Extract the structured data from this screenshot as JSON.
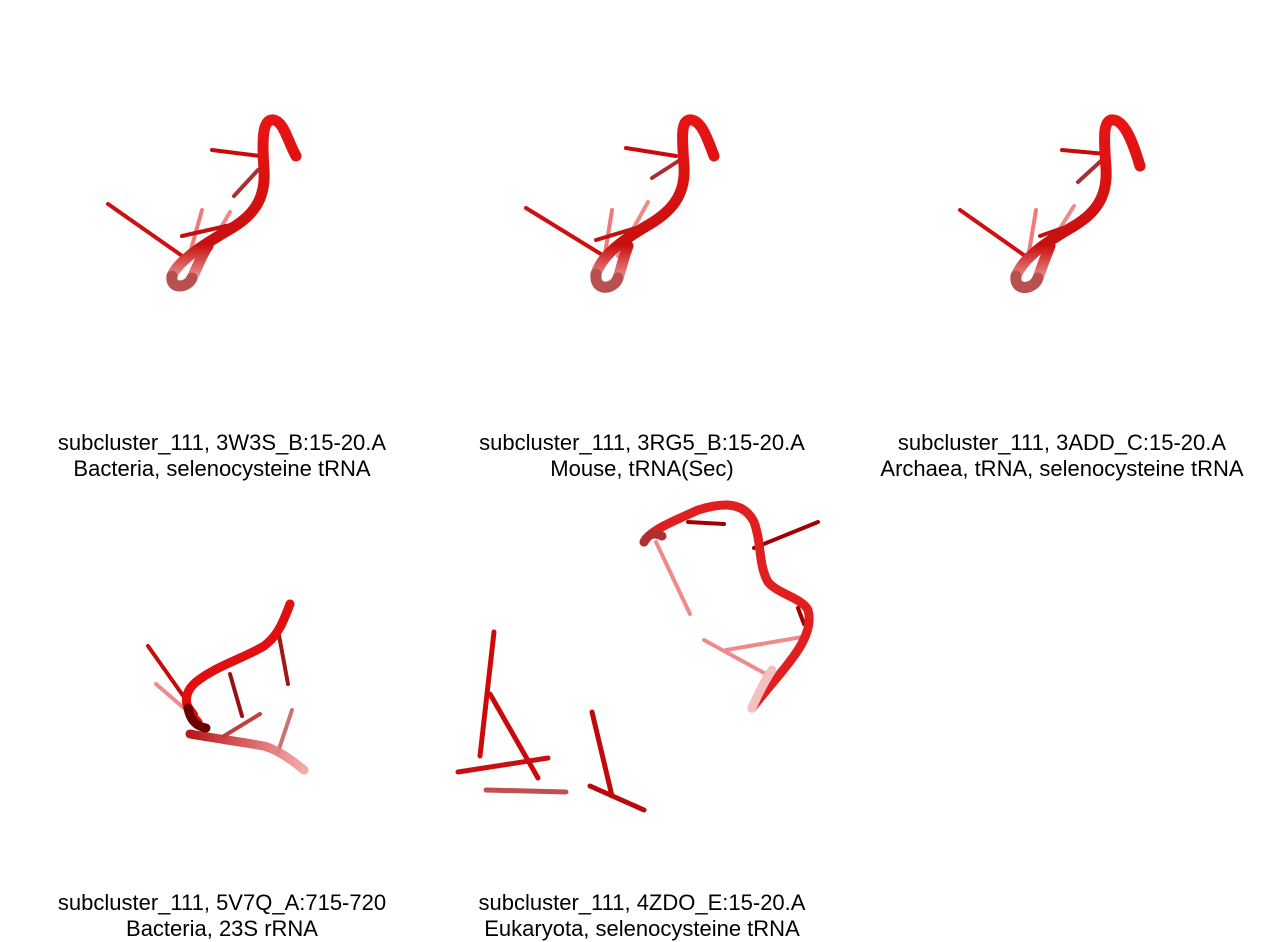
{
  "panels": [
    {
      "title": "subcluster_111, 3W3S_B:15-20.A",
      "subtitle": "Bacteria, selenocysteine tRNA"
    },
    {
      "title": "subcluster_111, 3RG5_B:15-20.A",
      "subtitle": "Mouse, tRNA(Sec)"
    },
    {
      "title": "subcluster_111, 3ADD_C:15-20.A",
      "subtitle": "Archaea, tRNA, selenocysteine tRNA"
    },
    {
      "title": "subcluster_111, 5V7Q_A:715-720",
      "subtitle": "Bacteria, 23S rRNA"
    },
    {
      "title": "subcluster_111, 4ZDO_E:15-20.A",
      "subtitle": "Eukaryota, selenocysteine tRNA"
    }
  ],
  "colors": {
    "backbone": "#e01010",
    "dark": "#8a0000",
    "faded": "#f08a8a"
  }
}
